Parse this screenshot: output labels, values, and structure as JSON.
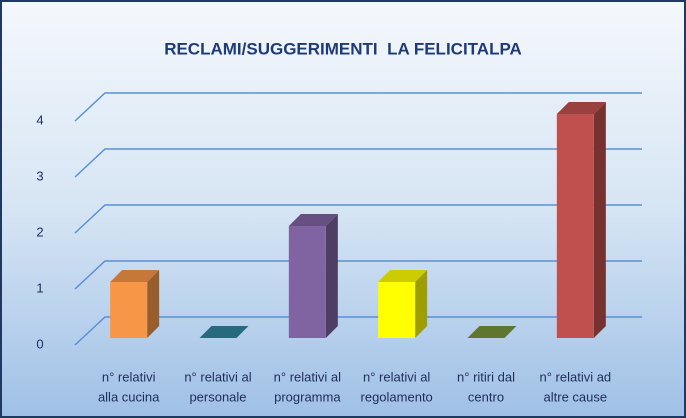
{
  "chart_data": {
    "type": "bar3d",
    "title": "RECLAMI/SUGGERIMENTI  LA FELICITALPA",
    "categories": [
      [
        "n° relativi",
        "alla cucina"
      ],
      [
        "n° relativi al",
        "personale"
      ],
      [
        "n° relativi al",
        "programma"
      ],
      [
        "n° relativi al",
        "regolamento"
      ],
      [
        "n° ritiri dal",
        "centro"
      ],
      [
        "n° relativi ad",
        "altre cause"
      ]
    ],
    "values": [
      1,
      0,
      2,
      1,
      0,
      4
    ],
    "colors": [
      "#f79646",
      "#31859c",
      "#8064a2",
      "#ffff00",
      "#77933c",
      "#c0504d"
    ],
    "ylim": [
      0,
      4
    ],
    "yticks": [
      0,
      1,
      2,
      3,
      4
    ],
    "grid": true
  }
}
